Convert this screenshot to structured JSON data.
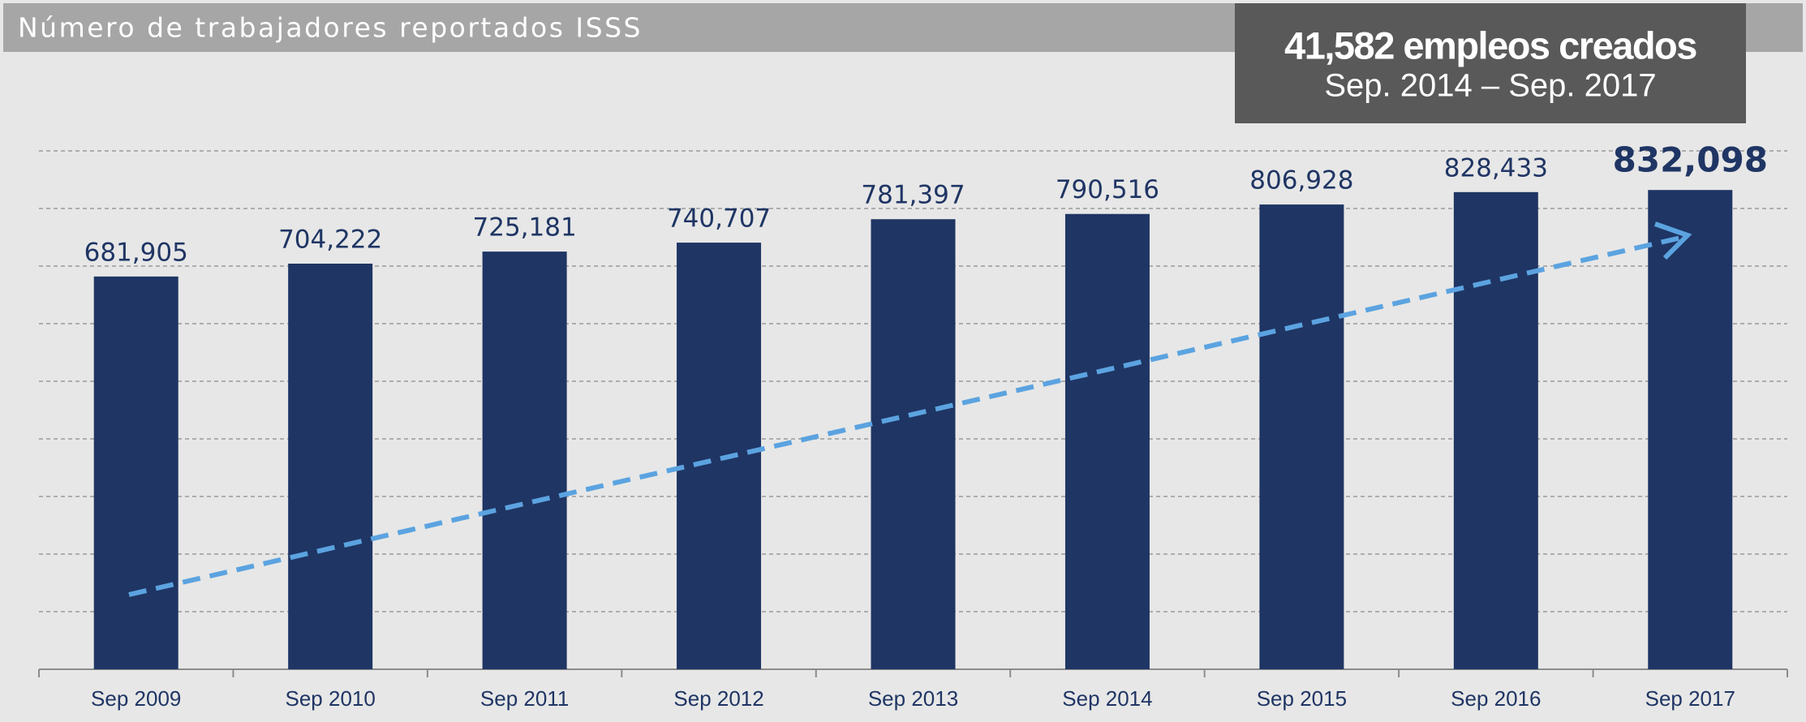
{
  "chart_data": {
    "type": "bar",
    "title": "Número de trabajadores reportados ISSS",
    "annotation": {
      "headline": "41,582 empleos creados",
      "period": "Sep. 2014 – Sep. 2017"
    },
    "categories": [
      "Sep 2009",
      "Sep 2010",
      "Sep 2011",
      "Sep 2012",
      "Sep 2013",
      "Sep 2014",
      "Sep 2015",
      "Sep 2016",
      "Sep 2017"
    ],
    "values": [
      681905,
      704222,
      725181,
      740707,
      781397,
      790516,
      806928,
      828433,
      832098
    ],
    "value_labels": [
      "681,905",
      "704,222",
      "725,181",
      "740,707",
      "781,397",
      "790,516",
      "806,928",
      "828,433",
      "832,098"
    ],
    "color": "#1f3564",
    "ylim": [
      0,
      900000
    ],
    "yticks": [
      0,
      100000,
      200000,
      300000,
      400000,
      500000,
      600000,
      700000,
      800000,
      900000
    ],
    "grid": true
  }
}
